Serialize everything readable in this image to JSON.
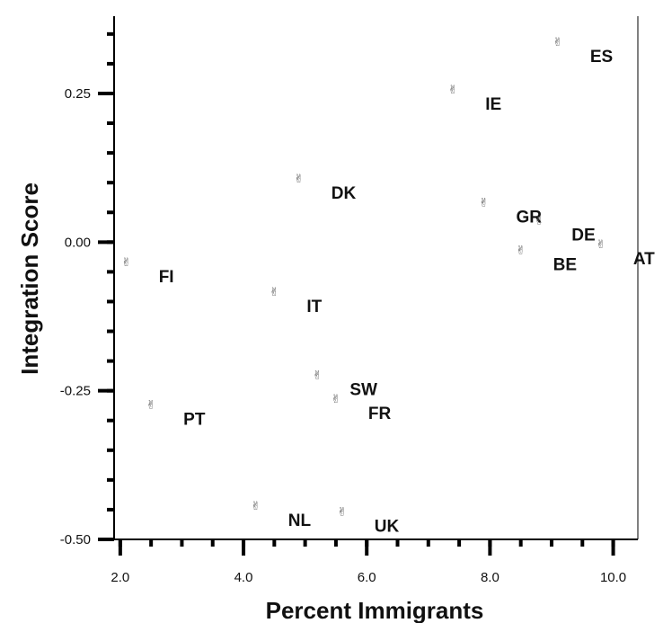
{
  "chart_data": {
    "type": "scatter",
    "title": "",
    "xlabel": "Percent Immigrants",
    "ylabel": "Integration Score",
    "xlim": [
      1.9,
      10.4
    ],
    "ylim": [
      -0.5,
      0.38
    ],
    "xticks": [
      {
        "value": 2.0,
        "label": "2.0"
      },
      {
        "value": 4.0,
        "label": "4.0"
      },
      {
        "value": 6.0,
        "label": "6.0"
      },
      {
        "value": 8.0,
        "label": "8.0"
      },
      {
        "value": 10.0,
        "label": "10.0"
      }
    ],
    "yticks": [
      {
        "value": 0.25,
        "label": "0.25"
      },
      {
        "value": 0.0,
        "label": "0.00"
      },
      {
        "value": -0.25,
        "label": "-0.25"
      },
      {
        "value": -0.5,
        "label": "-0.50"
      }
    ],
    "marker_glyph": "✌",
    "marker_color": "#555555",
    "grid": false,
    "legend": "none",
    "points": [
      {
        "label": "ES",
        "x": 9.1,
        "y": 0.33
      },
      {
        "label": "IE",
        "x": 7.4,
        "y": 0.25
      },
      {
        "label": "DK",
        "x": 4.9,
        "y": 0.1
      },
      {
        "label": "GR",
        "x": 7.9,
        "y": 0.06
      },
      {
        "label": "DE",
        "x": 8.8,
        "y": 0.03
      },
      {
        "label": "AT",
        "x": 9.8,
        "y": -0.01
      },
      {
        "label": "BE",
        "x": 8.5,
        "y": -0.02
      },
      {
        "label": "FI",
        "x": 2.1,
        "y": -0.04
      },
      {
        "label": "IT",
        "x": 4.5,
        "y": -0.09
      },
      {
        "label": "SW",
        "x": 5.2,
        "y": -0.23
      },
      {
        "label": "FR",
        "x": 5.5,
        "y": -0.27
      },
      {
        "label": "PT",
        "x": 2.5,
        "y": -0.28
      },
      {
        "label": "NL",
        "x": 4.2,
        "y": -0.45
      },
      {
        "label": "UK",
        "x": 5.6,
        "y": -0.46
      }
    ]
  }
}
